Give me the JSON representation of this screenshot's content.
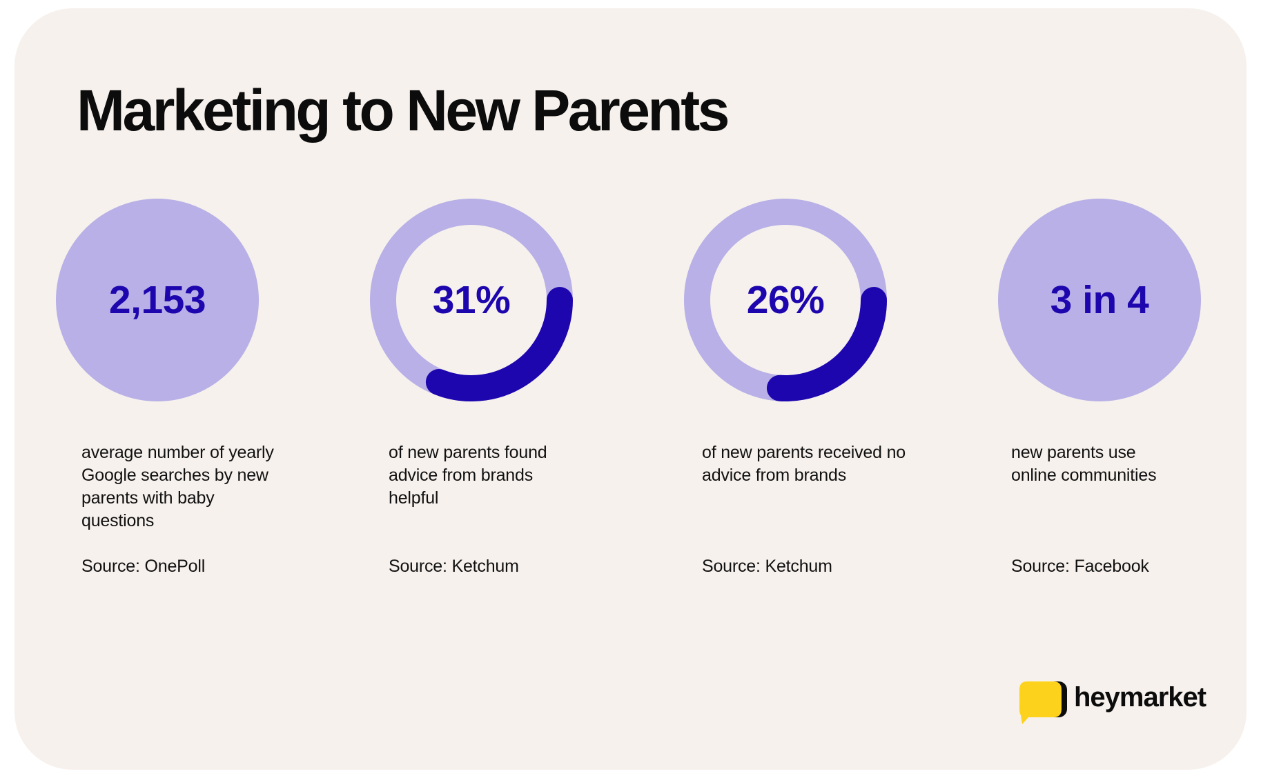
{
  "title": "Marketing to New Parents",
  "colors": {
    "background": "#f6f1ed",
    "circle_fill": "#b8b0e6",
    "accent": "#1d06ad",
    "text": "#111111",
    "logo_yellow": "#fcd21c"
  },
  "stats": [
    {
      "value": "2,153",
      "type": "circle",
      "description": "average number of yearly Google searches by new parents with baby questions",
      "source": "Source: OnePoll"
    },
    {
      "value": "31%",
      "type": "donut",
      "percent": 31,
      "description": "of new parents found advice from brands helpful",
      "source": "Source: Ketchum"
    },
    {
      "value": "26%",
      "type": "donut",
      "percent": 26,
      "description": "of new parents received no advice from brands",
      "source": "Source: Ketchum"
    },
    {
      "value": "3 in 4",
      "type": "circle",
      "description": "new parents use online communities",
      "source": "Source: Facebook"
    }
  ],
  "logo": {
    "text": "heymarket",
    "icon": "chat-bubble-icon"
  }
}
